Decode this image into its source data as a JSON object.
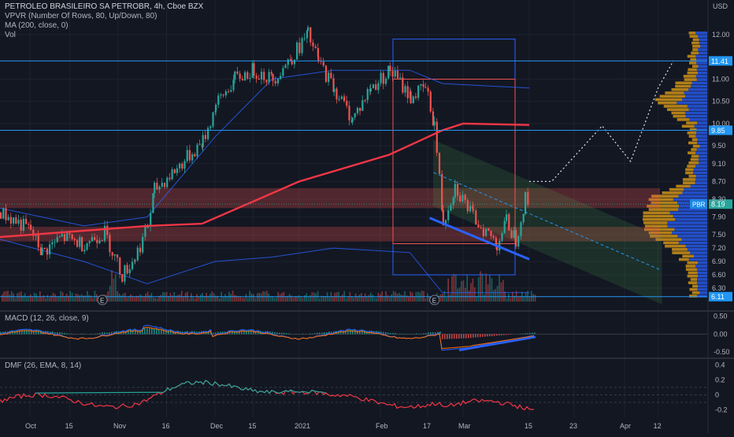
{
  "header": {
    "symbol_line": "PETROLEO BRASILEIRO SA PETROBR, 4h, Cboe BZX",
    "indicators": [
      "VPVR (Number Of Rows, 80, Up/Down, 80)",
      "MA (200, close, 0)",
      "Vol"
    ],
    "currency": "USD"
  },
  "colors": {
    "background": "#131722",
    "grid": "#1e2230",
    "up": "#26a69a",
    "down": "#ef5350",
    "ma": "#f23645",
    "blue_line": "#2962ff",
    "hline": "#2196f3",
    "channel": "#4caf50",
    "vp_up": "#2962ff",
    "vp_down": "#e8a317",
    "dmf": "#26a69a",
    "dmf_neg": "#f23645"
  },
  "chart_data": [
    {
      "type": "candlestick",
      "title": "PETROLEO BRASILEIRO SA PETROBR, 4h, Cboe BZX",
      "ylabel": "USD",
      "ylim": [
        6.05,
        12.25
      ],
      "y_ticks": [
        12.0,
        11.0,
        10.5,
        10.0,
        9.5,
        9.1,
        8.7,
        8.3,
        7.9,
        7.5,
        7.2,
        6.9,
        6.6,
        6.3
      ],
      "x_ticks": [
        "Oct",
        "15",
        "Nov",
        "16",
        "Dec",
        "15",
        "2021",
        "Feb",
        "17",
        "Mar",
        "15",
        "23",
        "Apr",
        "12"
      ],
      "series_close_path": [
        {
          "x": "Sep 27",
          "y": 8.0
        },
        {
          "x": "Oct 1",
          "y": 7.6
        },
        {
          "x": "Oct 5",
          "y": 7.1
        },
        {
          "x": "Oct 12",
          "y": 7.45
        },
        {
          "x": "Oct 19",
          "y": 7.3
        },
        {
          "x": "Oct 27",
          "y": 7.55
        },
        {
          "x": "Nov 2",
          "y": 6.6
        },
        {
          "x": "Nov 6",
          "y": 7.0
        },
        {
          "x": "Nov 10",
          "y": 7.7
        },
        {
          "x": "Nov 12",
          "y": 8.5
        },
        {
          "x": "Nov 19",
          "y": 9.0
        },
        {
          "x": "Nov 27",
          "y": 9.6
        },
        {
          "x": "Dec 1",
          "y": 10.4
        },
        {
          "x": "Dec 8",
          "y": 11.0
        },
        {
          "x": "Dec 15",
          "y": 11.2
        },
        {
          "x": "Dec 22",
          "y": 11.0
        },
        {
          "x": "Dec 29",
          "y": 11.5
        },
        {
          "x": "Jan 4",
          "y": 12.0
        },
        {
          "x": "Jan 8",
          "y": 11.4
        },
        {
          "x": "Jan 14",
          "y": 10.8
        },
        {
          "x": "Jan 21",
          "y": 10.1
        },
        {
          "x": "Jan 28",
          "y": 10.8
        },
        {
          "x": "Feb 4",
          "y": 11.2
        },
        {
          "x": "Feb 11",
          "y": 10.6
        },
        {
          "x": "Feb 16",
          "y": 10.8
        },
        {
          "x": "Feb 19",
          "y": 10.0
        },
        {
          "x": "Feb 22",
          "y": 7.8
        },
        {
          "x": "Feb 26",
          "y": 8.6
        },
        {
          "x": "Mar 3",
          "y": 7.9
        },
        {
          "x": "Mar 8",
          "y": 7.3
        },
        {
          "x": "Mar 10",
          "y": 7.8
        },
        {
          "x": "Mar 12",
          "y": 7.4
        },
        {
          "x": "Mar 14",
          "y": 8.3
        },
        {
          "x": "Mar 15",
          "y": 8.19
        }
      ],
      "ma200_path": [
        {
          "x": "Sep 27",
          "y": 7.45
        },
        {
          "x": "Nov 10",
          "y": 7.7
        },
        {
          "x": "Nov 27",
          "y": 7.75
        },
        {
          "x": "Jan 1",
          "y": 8.7
        },
        {
          "x": "Feb 4",
          "y": 9.3
        },
        {
          "x": "Feb 22",
          "y": 9.85
        },
        {
          "x": "Mar 1",
          "y": 10.0
        },
        {
          "x": "Mar 15",
          "y": 9.97
        }
      ],
      "projection_path": [
        {
          "x": "Mar 15",
          "y": 8.7
        },
        {
          "x": "Mar 19",
          "y": 8.7
        },
        {
          "x": "Mar 28",
          "y": 9.95
        },
        {
          "x": "Apr 3",
          "y": 9.15
        },
        {
          "x": "Apr 12",
          "y": 10.8
        },
        {
          "x": "Apr 17",
          "y": 11.41
        }
      ],
      "levels": [
        {
          "label": "11.41",
          "y": 11.41
        },
        {
          "label": "9.85",
          "y": 9.85
        },
        {
          "label": "6.11",
          "y": 6.11
        }
      ],
      "last_price": {
        "label": "8.19",
        "tag": "PBR",
        "y": 8.19
      },
      "zones": [
        {
          "from": 8.1,
          "to": 8.55
        },
        {
          "from": 7.35,
          "to": 7.68
        }
      ],
      "annotations": [
        "E",
        "E"
      ]
    },
    {
      "type": "line",
      "title": "MACD (12, 26, close, 9)",
      "ylim": [
        -0.65,
        0.62
      ],
      "y_ticks": [
        "0.50",
        "0.00",
        "-0.50"
      ]
    },
    {
      "type": "line",
      "title": "DMF (26, EMA, 8, 14)",
      "ylim": [
        -0.3,
        0.48
      ],
      "y_ticks": [
        "0.4",
        "0.2",
        "0",
        "-0.2"
      ]
    }
  ]
}
